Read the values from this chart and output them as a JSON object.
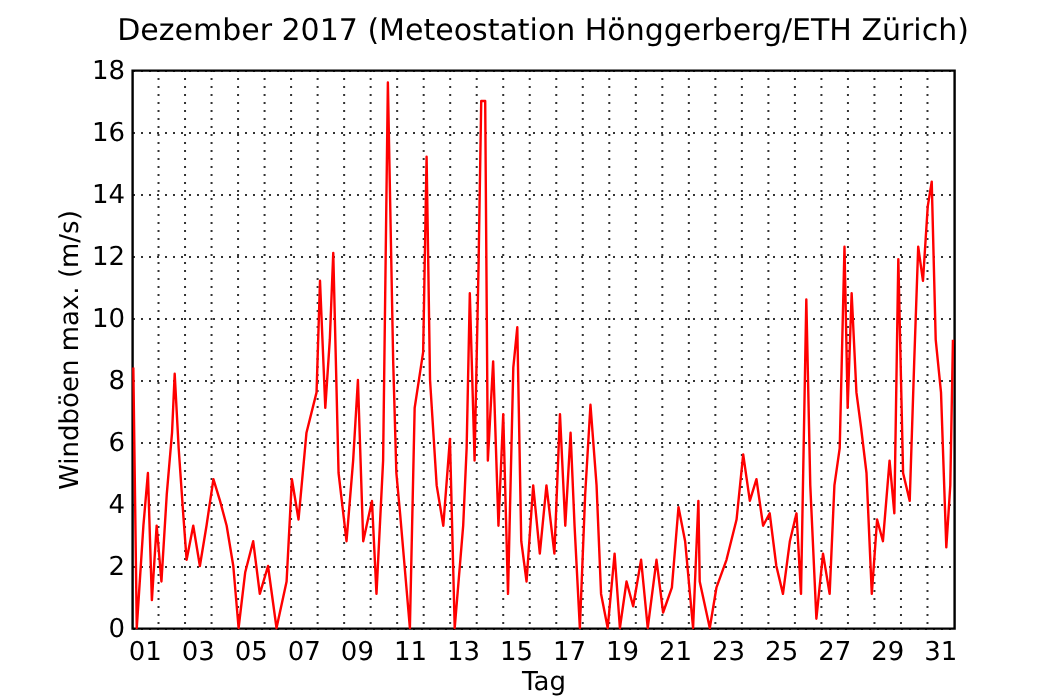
{
  "chart_data": {
    "type": "line",
    "title": "Dezember 2017  (Meteostation Hönggerberg/ETH Zürich)",
    "xlabel": "Tag",
    "ylabel": "Windböen max. (m/s)",
    "x": [
      1.05,
      1.18,
      1.43,
      1.6,
      1.75,
      1.93,
      2.11,
      2.31,
      2.51,
      2.61,
      2.76,
      2.93,
      3.06,
      3.31,
      3.56,
      3.81,
      4.07,
      4.32,
      4.57,
      4.82,
      5.02,
      5.27,
      5.57,
      5.82,
      6.13,
      6.45,
      6.83,
      7.03,
      7.28,
      7.58,
      7.96,
      8.09,
      8.29,
      8.46,
      8.59,
      8.79,
      9.09,
      9.34,
      9.52,
      9.72,
      10.05,
      10.22,
      10.47,
      10.65,
      10.85,
      10.97,
      11.11,
      11.48,
      11.66,
      11.98,
      12.11,
      12.24,
      12.49,
      12.74,
      12.99,
      13.17,
      13.49,
      13.62,
      13.74,
      13.92,
      14.07,
      14.17,
      14.32,
      14.42,
      14.62,
      14.82,
      15.0,
      15.18,
      15.38,
      15.53,
      15.68,
      15.88,
      16.13,
      16.38,
      16.63,
      16.93,
      17.14,
      17.34,
      17.54,
      17.69,
      17.89,
      18.09,
      18.29,
      18.52,
      18.69,
      18.94,
      19.2,
      19.4,
      19.65,
      19.9,
      20.2,
      20.45,
      20.78,
      21.03,
      21.36,
      21.61,
      21.86,
      22.16,
      22.36,
      22.41,
      22.79,
      23.04,
      23.42,
      23.8,
      24.05,
      24.3,
      24.55,
      24.8,
      25.05,
      25.3,
      25.55,
      25.81,
      26.06,
      26.23,
      26.43,
      26.58,
      26.81,
      27.06,
      27.31,
      27.49,
      27.69,
      27.87,
      27.99,
      28.14,
      28.32,
      28.49,
      28.7,
      28.9,
      29.1,
      29.32,
      29.57,
      29.75,
      29.9,
      30.08,
      30.33,
      30.5,
      30.65,
      30.83,
      31.01,
      31.16,
      31.31,
      31.51,
      31.71,
      31.86,
      31.96
    ],
    "series": [
      {
        "color": "#ff0000",
        "values": [
          8.4,
          0,
          3.3,
          5.0,
          0.9,
          3.3,
          1.5,
          4.3,
          6.3,
          8.2,
          5.8,
          3.7,
          2.2,
          3.3,
          2.0,
          3.3,
          4.8,
          4.1,
          3.3,
          2.0,
          0,
          1.8,
          2.8,
          1.1,
          2.0,
          0,
          1.5,
          4.8,
          3.5,
          6.3,
          7.6,
          11.2,
          7.1,
          9.3,
          12.1,
          5.0,
          2.8,
          5.4,
          8.0,
          2.8,
          4.1,
          1.1,
          5.4,
          17.6,
          8.6,
          5.0,
          3.7,
          0,
          7.1,
          8.9,
          15.2,
          8.0,
          4.6,
          3.3,
          6.1,
          0,
          3.3,
          5.8,
          10.8,
          5.4,
          11.7,
          17.0,
          17.0,
          5.4,
          8.6,
          3.3,
          6.9,
          1.1,
          8.4,
          9.7,
          2.8,
          1.5,
          4.6,
          2.4,
          4.6,
          2.4,
          6.9,
          3.3,
          6.3,
          3.3,
          0,
          4.3,
          7.2,
          4.6,
          1.1,
          0,
          2.4,
          0,
          1.5,
          0.7,
          2.2,
          0,
          2.2,
          0.5,
          1.3,
          3.9,
          2.8,
          0,
          4.1,
          1.5,
          0,
          1.3,
          2.2,
          3.5,
          5.6,
          4.1,
          4.8,
          3.3,
          3.7,
          2.0,
          1.1,
          2.8,
          3.7,
          1.1,
          10.6,
          4.6,
          0.3,
          2.4,
          1.1,
          4.6,
          5.8,
          12.3,
          7.1,
          10.8,
          7.6,
          6.5,
          5.0,
          1.1,
          3.5,
          2.8,
          5.4,
          3.7,
          11.9,
          5.0,
          4.1,
          8.6,
          12.3,
          11.2,
          13.6,
          14.4,
          9.3,
          7.6,
          2.6,
          4.6,
          9.3
        ]
      }
    ],
    "xlim": [
      1,
      32
    ],
    "xticks": [
      {
        "value": 1.5,
        "label": "01"
      },
      {
        "value": 3.5,
        "label": "03"
      },
      {
        "value": 5.5,
        "label": "05"
      },
      {
        "value": 7.5,
        "label": "07"
      },
      {
        "value": 9.5,
        "label": "09"
      },
      {
        "value": 11.5,
        "label": "11"
      },
      {
        "value": 13.5,
        "label": "13"
      },
      {
        "value": 15.5,
        "label": "15"
      },
      {
        "value": 17.5,
        "label": "17"
      },
      {
        "value": 19.5,
        "label": "19"
      },
      {
        "value": 21.5,
        "label": "21"
      },
      {
        "value": 23.5,
        "label": "23"
      },
      {
        "value": 25.5,
        "label": "25"
      },
      {
        "value": 27.5,
        "label": "27"
      },
      {
        "value": 29.5,
        "label": "29"
      },
      {
        "value": 31.5,
        "label": "31"
      },
      {
        "value": 2,
        "label": null
      },
      {
        "value": 3,
        "label": null
      },
      {
        "value": 4,
        "label": null
      },
      {
        "value": 5,
        "label": null
      },
      {
        "value": 6,
        "label": null
      },
      {
        "value": 7,
        "label": null
      },
      {
        "value": 8,
        "label": null
      },
      {
        "value": 9,
        "label": null
      },
      {
        "value": 10,
        "label": null
      },
      {
        "value": 11,
        "label": null
      },
      {
        "value": 12,
        "label": null
      },
      {
        "value": 13,
        "label": null
      },
      {
        "value": 14,
        "label": null
      },
      {
        "value": 15,
        "label": null
      },
      {
        "value": 16,
        "label": null
      },
      {
        "value": 17,
        "label": null
      },
      {
        "value": 18,
        "label": null
      },
      {
        "value": 19,
        "label": null
      },
      {
        "value": 20,
        "label": null
      },
      {
        "value": 21,
        "label": null
      },
      {
        "value": 22,
        "label": null
      },
      {
        "value": 23,
        "label": null
      },
      {
        "value": 24,
        "label": null
      },
      {
        "value": 25,
        "label": null
      },
      {
        "value": 26,
        "label": null
      },
      {
        "value": 27,
        "label": null
      },
      {
        "value": 28,
        "label": null
      },
      {
        "value": 29,
        "label": null
      },
      {
        "value": 30,
        "label": null
      },
      {
        "value": 31,
        "label": null
      }
    ],
    "ylim": [
      0,
      18
    ],
    "yticks": [
      0,
      2,
      4,
      6,
      8,
      10,
      12,
      14,
      16,
      18
    ],
    "grid": true,
    "line_style": "solid",
    "marker": "none"
  }
}
